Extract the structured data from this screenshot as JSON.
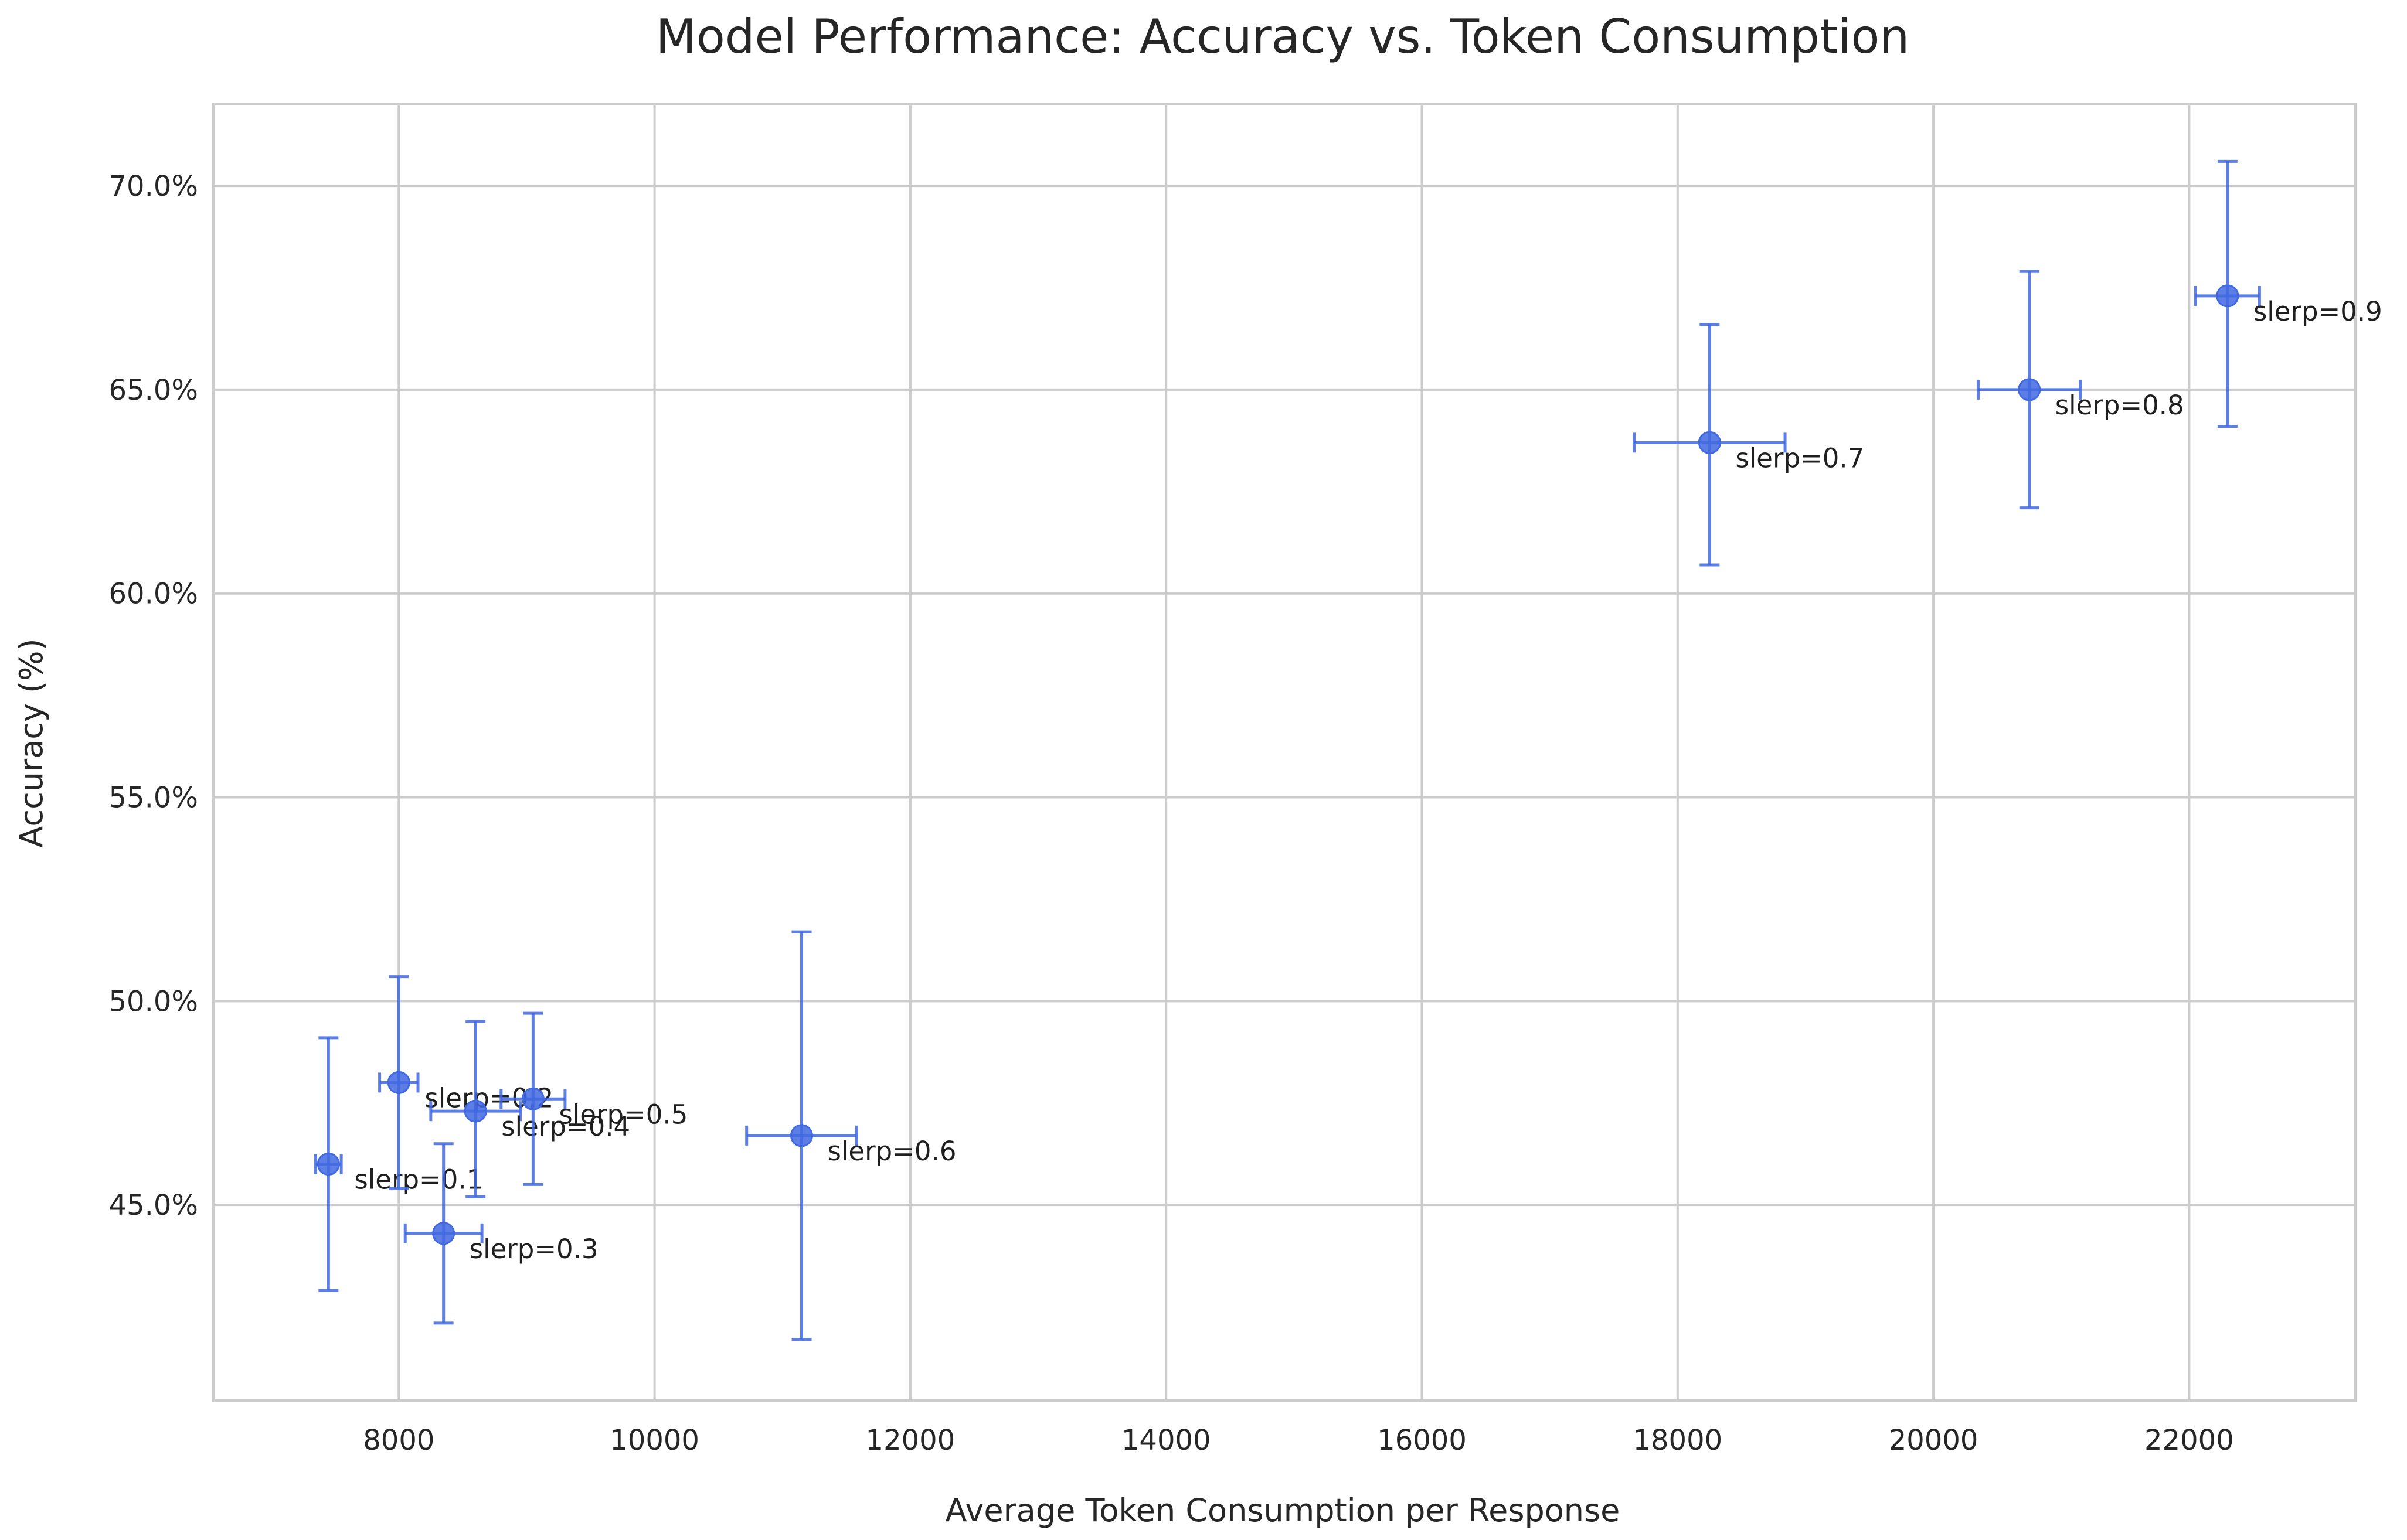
{
  "chart_data": {
    "type": "scatter",
    "title": "Model Performance: Accuracy vs. Token Consumption",
    "xlabel": "Average Token Consumption per Response",
    "ylabel": "Accuracy (%)",
    "xlim": [
      6550,
      23300
    ],
    "ylim": [
      40.2,
      72.0
    ],
    "xticks": [
      8000,
      10000,
      12000,
      14000,
      16000,
      18000,
      20000,
      22000
    ],
    "xtick_labels": [
      "8000",
      "10000",
      "12000",
      "14000",
      "16000",
      "18000",
      "20000",
      "22000"
    ],
    "yticks": [
      45,
      50,
      55,
      60,
      65,
      70
    ],
    "ytick_labels": [
      "45.0%",
      "50.0%",
      "55.0%",
      "60.0%",
      "65.0%",
      "70.0%"
    ],
    "grid": true,
    "legend": "none",
    "colors": {
      "marker": "#4169e1",
      "grid": "#cccccc",
      "text": "#262626"
    },
    "points": [
      {
        "label": "slerp=0.1",
        "x": 7450,
        "y": 46.0,
        "xerr": 100,
        "yerr_low": 3.1,
        "yerr_high": 3.1
      },
      {
        "label": "slerp=0.2",
        "x": 8000,
        "y": 48.0,
        "xerr": 150,
        "yerr_low": 2.6,
        "yerr_high": 2.6
      },
      {
        "label": "slerp=0.3",
        "x": 8350,
        "y": 44.3,
        "xerr": 300,
        "yerr_low": 2.2,
        "yerr_high": 2.2
      },
      {
        "label": "slerp=0.4",
        "x": 8600,
        "y": 47.3,
        "xerr": 350,
        "yerr_low": 2.1,
        "yerr_high": 2.2
      },
      {
        "label": "slerp=0.5",
        "x": 9050,
        "y": 47.6,
        "xerr": 250,
        "yerr_low": 2.1,
        "yerr_high": 2.1
      },
      {
        "label": "slerp=0.6",
        "x": 11150,
        "y": 46.7,
        "xerr": 430,
        "yerr_low": 5.0,
        "yerr_high": 5.0
      },
      {
        "label": "slerp=0.7",
        "x": 18250,
        "y": 63.7,
        "xerr": 590,
        "yerr_low": 3.0,
        "yerr_high": 2.9
      },
      {
        "label": "slerp=0.8",
        "x": 20750,
        "y": 65.0,
        "xerr": 400,
        "yerr_low": 2.9,
        "yerr_high": 2.9
      },
      {
        "label": "slerp=0.9",
        "x": 22300,
        "y": 67.3,
        "xerr": 250,
        "yerr_low": 3.2,
        "yerr_high": 3.3
      }
    ]
  }
}
